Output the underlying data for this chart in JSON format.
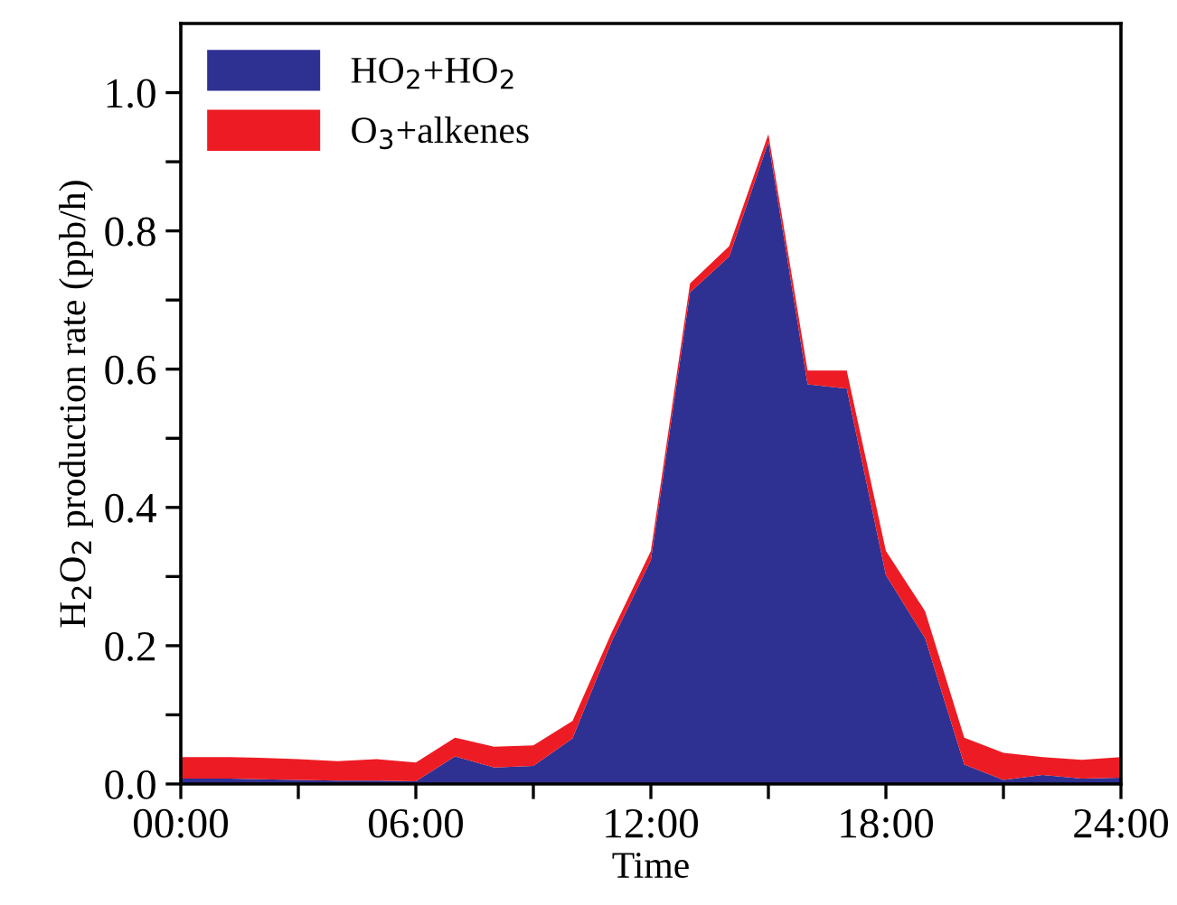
{
  "chart_data": {
    "type": "area",
    "stacked": true,
    "xlabel": "Time",
    "ylabel": "H$_{2}$O$_{2}$ production rate (ppb/h)",
    "x": [
      0,
      1,
      2,
      3,
      4,
      5,
      6,
      7,
      8,
      9,
      10,
      11,
      12,
      13,
      14,
      15,
      16,
      17,
      18,
      19,
      20,
      21,
      22,
      23,
      24
    ],
    "series": [
      {
        "name": "HO$_{2}$+HO$_{2}$",
        "color": "#2e3192",
        "values": [
          0.008,
          0.008,
          0.007,
          0.006,
          0.005,
          0.005,
          0.004,
          0.04,
          0.024,
          0.026,
          0.066,
          0.206,
          0.324,
          0.711,
          0.763,
          0.929,
          0.578,
          0.572,
          0.302,
          0.211,
          0.028,
          0.006,
          0.013,
          0.008,
          0.009
        ]
      },
      {
        "name": "O$_{3}$+alkenes",
        "color": "#ed1c24",
        "values": [
          0.031,
          0.031,
          0.031,
          0.03,
          0.028,
          0.031,
          0.027,
          0.027,
          0.03,
          0.03,
          0.025,
          0.013,
          0.013,
          0.013,
          0.015,
          0.011,
          0.02,
          0.026,
          0.035,
          0.039,
          0.039,
          0.039,
          0.026,
          0.027,
          0.03
        ]
      }
    ],
    "xlim": [
      0,
      24
    ],
    "xticks": [
      {
        "value": 0,
        "label": "00:00"
      },
      {
        "value": 3,
        "label": null
      },
      {
        "value": 6,
        "label": "06:00"
      },
      {
        "value": 9,
        "label": null
      },
      {
        "value": 12,
        "label": "12:00"
      },
      {
        "value": 15,
        "label": null
      },
      {
        "value": 18,
        "label": "18:00"
      },
      {
        "value": 21,
        "label": null
      },
      {
        "value": 24,
        "label": "24:00"
      }
    ],
    "ylim": [
      0,
      1.1
    ],
    "yticks": [
      {
        "value": 0,
        "label": "0.0"
      },
      {
        "value": 0.1,
        "label": null
      },
      {
        "value": 0.2,
        "label": "0.2"
      },
      {
        "value": 0.3,
        "label": null
      },
      {
        "value": 0.4,
        "label": "0.4"
      },
      {
        "value": 0.5,
        "label": null
      },
      {
        "value": 0.6,
        "label": "0.6"
      },
      {
        "value": 0.7,
        "label": null
      },
      {
        "value": 0.8,
        "label": "0.8"
      },
      {
        "value": 0.9,
        "label": null
      },
      {
        "value": 1.0,
        "label": "1.0"
      }
    ],
    "legend": "top left",
    "grid": false
  }
}
